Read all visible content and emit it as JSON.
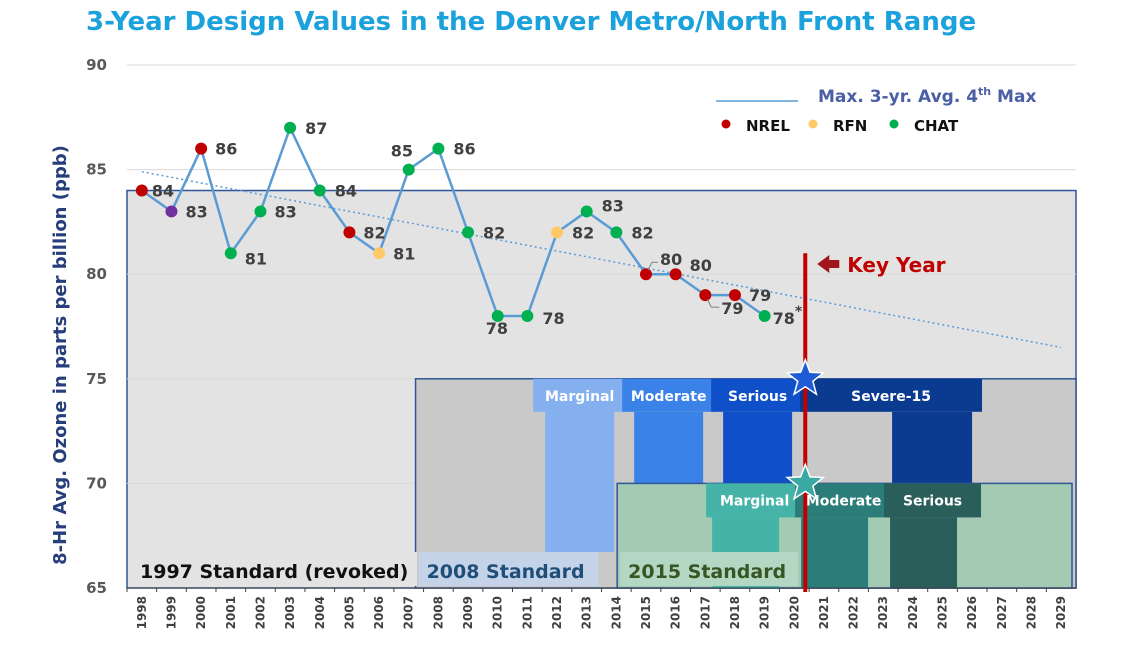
{
  "chart_data": {
    "type": "line",
    "title": "3-Year Design Values in the Denver Metro/North Front Range",
    "ylabel": "8-Hr Avg. Ozone in parts per billion (ppb)",
    "ylim": [
      65,
      90
    ],
    "yticks": [
      90,
      85,
      80,
      75,
      70,
      65
    ],
    "grid": true,
    "categories": [
      "1998",
      "1999",
      "2000",
      "2001",
      "2002",
      "2003",
      "2004",
      "2005",
      "2006",
      "2007",
      "2008",
      "2009",
      "2010",
      "2011",
      "2012",
      "2013",
      "2014",
      "2015",
      "2016",
      "2017",
      "2018",
      "2019",
      "2020",
      "2021",
      "2022",
      "2023",
      "2024",
      "2025",
      "2026",
      "2027",
      "2028",
      "2029"
    ],
    "series": [
      {
        "name": "Max. 3-yr. Avg. 4th Max",
        "x": [
          "1998",
          "1999",
          "2000",
          "2001",
          "2002",
          "2003",
          "2004",
          "2005",
          "2006",
          "2007",
          "2008",
          "2009",
          "2010",
          "2011",
          "2012",
          "2013",
          "2014",
          "2015",
          "2016",
          "2017",
          "2018",
          "2019"
        ],
        "values": [
          84,
          83,
          86,
          81,
          83,
          87,
          84,
          82,
          81,
          85,
          86,
          82,
          78,
          78,
          82,
          83,
          82,
          80,
          80,
          79,
          79,
          78
        ],
        "monitor": [
          "NREL",
          "CHAT_PURPLE",
          "NREL",
          "CHAT",
          "CHAT",
          "CHAT",
          "CHAT",
          "NREL",
          "RFN",
          "CHAT",
          "CHAT",
          "CHAT",
          "CHAT",
          "CHAT",
          "RFN",
          "CHAT",
          "CHAT",
          "NREL",
          "NREL",
          "NREL",
          "NREL",
          "CHAT"
        ],
        "labels": [
          "84",
          "83",
          "86",
          "81",
          "83",
          "87",
          "84",
          "82",
          "81",
          "85",
          "86",
          "82",
          "78",
          "78",
          "82",
          "83",
          "82",
          "80",
          "80",
          "79",
          "79",
          "78"
        ],
        "last_label_suffix": "*"
      }
    ],
    "trendline": {
      "start": [
        "1998",
        84.9
      ],
      "end": [
        "2029",
        76.5
      ]
    },
    "legend": {
      "title": "Max. 3-yr. Avg. 4th Max",
      "title_main": "Max. 3-yr. Avg. 4",
      "title_sup": "th",
      "title_tail": " Max",
      "placement": "top-right",
      "items": [
        {
          "label": "NREL",
          "color": "#c00000"
        },
        {
          "label": "RFN",
          "color": "#ffc869"
        },
        {
          "label": "CHAT",
          "color": "#00b050"
        }
      ]
    },
    "key_year": {
      "label": "Key Year",
      "x": "2020",
      "color": "#c00000"
    },
    "standards": [
      {
        "label": "1997 Standard (revoked)",
        "level": 84,
        "from": "1998",
        "to": "2029",
        "color": "#111111"
      },
      {
        "label": "2008 Standard",
        "level": 75,
        "from": "2008",
        "to": "2029",
        "color": "#1f4e79"
      },
      {
        "label": "2015 Standard",
        "level": 70,
        "from": "2015",
        "to": "2029",
        "color": "#375623"
      }
    ],
    "classifications_2008": [
      {
        "label": "Marginal",
        "from": "2012",
        "to": "2014",
        "color": "#84b0ef"
      },
      {
        "label": "Moderate",
        "from": "2015",
        "to": "2017",
        "color": "#3b82e8"
      },
      {
        "label": "Serious",
        "from": "2018",
        "to": "2020",
        "color": "#0f4fc8"
      },
      {
        "label": "Severe-15",
        "from": "2021",
        "to": "2026",
        "color": "#0b3a91"
      }
    ],
    "classifications_2015": [
      {
        "label": "Marginal",
        "from": "2018",
        "to": "2020",
        "color": "#45b3a8"
      },
      {
        "label": "Moderate",
        "from": "2021",
        "to": "2023",
        "color": "#2b7d79"
      },
      {
        "label": "Serious",
        "from": "2024",
        "to": "2026",
        "color": "#2a5e5a"
      }
    ],
    "colors": {
      "title": "#1ba1db",
      "line": "#5b9bd5",
      "trend": "#5b9bd5",
      "nrel": "#c00000",
      "rfn": "#ffc869",
      "chat": "#00b050",
      "purple": "#7030a0",
      "bg_1997": "#e3e3e3",
      "bg_2008": "#c9c9c9",
      "bg_2015": "#a3cbb3",
      "star_2008": "#1f5bd6",
      "star_2015": "#3aa9a4"
    }
  }
}
